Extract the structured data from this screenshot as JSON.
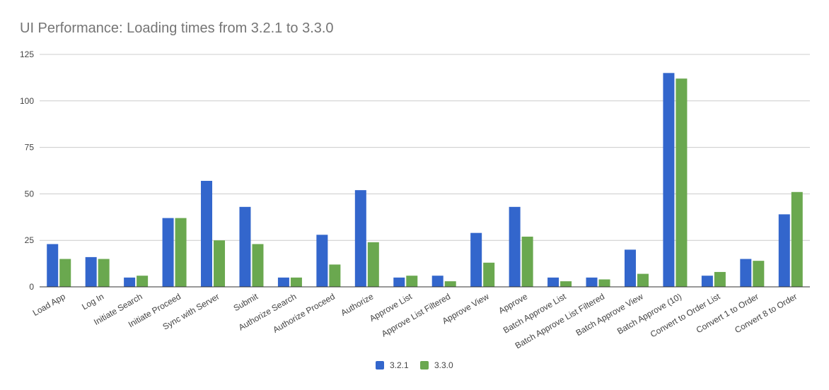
{
  "chart_data": {
    "type": "bar",
    "title": "UI Performance: Loading times from 3.2.1 to 3.3.0",
    "xlabel": "",
    "ylabel": "",
    "ylim": [
      0,
      125
    ],
    "yticks": [
      0,
      25,
      50,
      75,
      100,
      125
    ],
    "grid": true,
    "legend_position": "bottom",
    "categories": [
      "Load App",
      "Log In",
      "Initiate Search",
      "Initiate Proceed",
      "Sync with Server",
      "Submit",
      "Authorize Search",
      "Authorize Proceed",
      "Authorize",
      "Approve List",
      "Approve List Filtered",
      "Approve View",
      "Approve",
      "Batch Approve List",
      "Batch Approve List Filtered",
      "Batch Approve View",
      "Batch Approve (10)",
      "Convert to Order List",
      "Convert 1 to Order",
      "Convert 8 to Order"
    ],
    "series": [
      {
        "name": "3.2.1",
        "color": "#3366cc",
        "values": [
          23,
          16,
          5,
          37,
          57,
          43,
          5,
          28,
          52,
          5,
          6,
          29,
          43,
          5,
          5,
          20,
          115,
          6,
          15,
          39
        ]
      },
      {
        "name": "3.3.0",
        "color": "#6aa84f",
        "values": [
          15,
          15,
          6,
          37,
          25,
          23,
          5,
          12,
          24,
          6,
          3,
          13,
          27,
          3,
          4,
          7,
          112,
          8,
          14,
          51
        ]
      }
    ]
  }
}
